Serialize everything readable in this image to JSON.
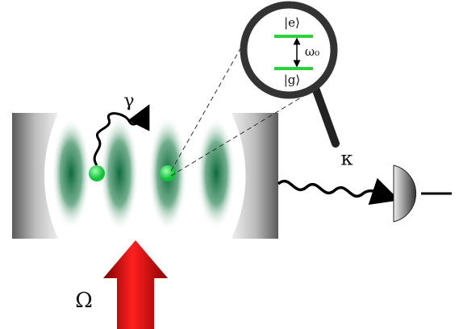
{
  "labels": {
    "excited": "|e⟩",
    "ground": "|g⟩",
    "transition": "ω₀",
    "decay": "γ",
    "cavity_loss": "κ",
    "drive": "Ω"
  }
}
